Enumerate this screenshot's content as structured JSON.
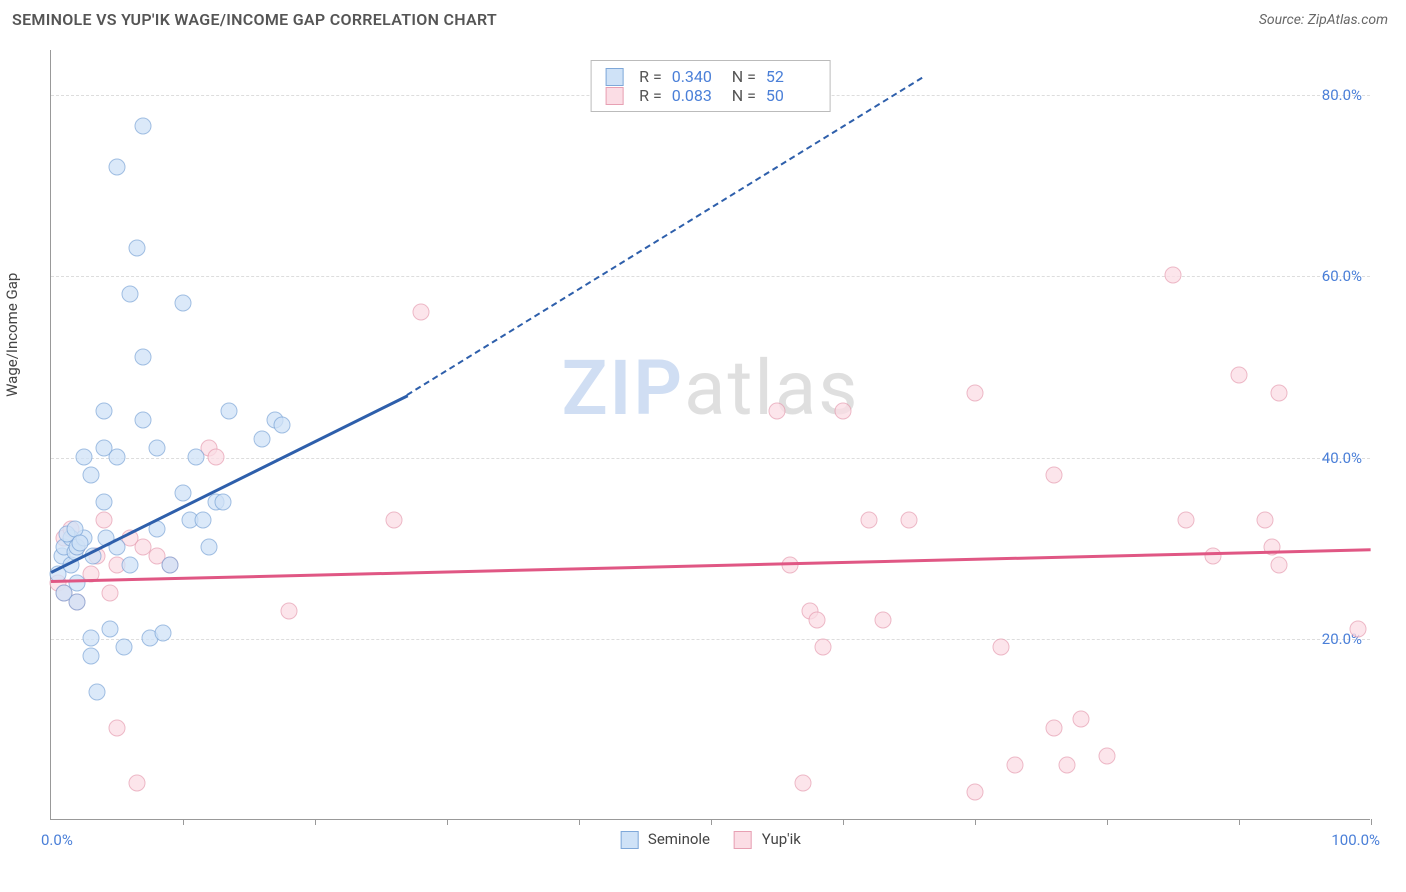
{
  "header": {
    "title": "SEMINOLE VS YUP'IK WAGE/INCOME GAP CORRELATION CHART",
    "source": "Source: ZipAtlas.com"
  },
  "ylabel": "Wage/Income Gap",
  "watermark": {
    "z": "ZIP",
    "rest": "atlas"
  },
  "chart": {
    "type": "scatter",
    "xlim": [
      0,
      100
    ],
    "ylim": [
      0,
      85
    ],
    "xaxis_min_label": "0.0%",
    "xaxis_max_label": "100.0%",
    "ytick_labels": [
      "20.0%",
      "40.0%",
      "60.0%",
      "80.0%"
    ],
    "ytick_values": [
      20,
      40,
      60,
      80
    ],
    "xtick_values": [
      10,
      20,
      30,
      40,
      50,
      60,
      70,
      80,
      90,
      100
    ],
    "grid_color": "#dddddd",
    "background_color": "#ffffff",
    "axis_color": "#999999",
    "tick_label_color": "#4a7fd8"
  },
  "series": {
    "seminole": {
      "label": "Seminole",
      "fill": "#cfe2f7",
      "stroke": "#7fa8d9",
      "trend_color": "#2e5fab",
      "trend": {
        "x1": 0,
        "y1": 27.5,
        "x2": 27,
        "y2": 47
      },
      "trend_dash": {
        "x1": 27,
        "y1": 47,
        "x2": 66,
        "y2": 82
      },
      "R": "0.340",
      "N": "52",
      "points": [
        [
          0.5,
          27
        ],
        [
          0.8,
          29
        ],
        [
          1,
          25
        ],
        [
          1,
          30
        ],
        [
          1.5,
          31
        ],
        [
          1.5,
          28
        ],
        [
          1.8,
          29.5
        ],
        [
          2,
          30
        ],
        [
          2,
          26
        ],
        [
          2,
          24
        ],
        [
          2.5,
          40
        ],
        [
          2.5,
          31
        ],
        [
          3,
          38
        ],
        [
          3,
          18
        ],
        [
          3,
          20
        ],
        [
          3.5,
          14
        ],
        [
          4,
          41
        ],
        [
          4,
          35
        ],
        [
          4,
          45
        ],
        [
          4.5,
          21
        ],
        [
          5,
          72
        ],
        [
          5,
          40
        ],
        [
          5,
          30
        ],
        [
          5.5,
          19
        ],
        [
          6,
          58
        ],
        [
          6,
          28
        ],
        [
          6.5,
          63
        ],
        [
          7,
          76.5
        ],
        [
          7,
          51
        ],
        [
          7,
          44
        ],
        [
          7.5,
          20
        ],
        [
          8,
          41
        ],
        [
          8,
          32
        ],
        [
          8.5,
          20.5
        ],
        [
          9,
          28
        ],
        [
          10,
          57
        ],
        [
          10,
          36
        ],
        [
          10.5,
          33
        ],
        [
          11,
          40
        ],
        [
          11.5,
          33
        ],
        [
          12,
          30
        ],
        [
          12.5,
          35
        ],
        [
          13,
          35
        ],
        [
          13.5,
          45
        ],
        [
          16,
          42
        ],
        [
          17,
          44
        ],
        [
          17.5,
          43.5
        ],
        [
          1.2,
          31.5
        ],
        [
          1.8,
          32
        ],
        [
          2.2,
          30.5
        ],
        [
          3.2,
          29
        ],
        [
          4.2,
          31
        ]
      ]
    },
    "yupik": {
      "label": "Yup'ik",
      "fill": "#fbdde5",
      "stroke": "#e7a0b3",
      "trend_color": "#e05784",
      "trend": {
        "x1": 0,
        "y1": 26.5,
        "x2": 100,
        "y2": 30
      },
      "R": "0.083",
      "N": "50",
      "points": [
        [
          0.5,
          26
        ],
        [
          1,
          31
        ],
        [
          1,
          25
        ],
        [
          1.5,
          32
        ],
        [
          2,
          30
        ],
        [
          2,
          24
        ],
        [
          3,
          27
        ],
        [
          3.5,
          29
        ],
        [
          4,
          33
        ],
        [
          4.5,
          25
        ],
        [
          5,
          28
        ],
        [
          5,
          10
        ],
        [
          6,
          31
        ],
        [
          6.5,
          4
        ],
        [
          7,
          30
        ],
        [
          8,
          29
        ],
        [
          9,
          28
        ],
        [
          12,
          41
        ],
        [
          12.5,
          40
        ],
        [
          18,
          23
        ],
        [
          26,
          33
        ],
        [
          28,
          56
        ],
        [
          55,
          45
        ],
        [
          56,
          28
        ],
        [
          57,
          4
        ],
        [
          57.5,
          23
        ],
        [
          58,
          22
        ],
        [
          58.5,
          19
        ],
        [
          60,
          45
        ],
        [
          62,
          33
        ],
        [
          63,
          22
        ],
        [
          65,
          33
        ],
        [
          70,
          47
        ],
        [
          70,
          3
        ],
        [
          72,
          19
        ],
        [
          73,
          6
        ],
        [
          76,
          38
        ],
        [
          76,
          10
        ],
        [
          77,
          6
        ],
        [
          78,
          11
        ],
        [
          80,
          7
        ],
        [
          85,
          60
        ],
        [
          86,
          33
        ],
        [
          88,
          29
        ],
        [
          90,
          49
        ],
        [
          92,
          33
        ],
        [
          92.5,
          30
        ],
        [
          93,
          47
        ],
        [
          93,
          28
        ],
        [
          99,
          21
        ]
      ]
    }
  },
  "legend_top": {
    "r_label": "R =",
    "n_label": "N ="
  }
}
